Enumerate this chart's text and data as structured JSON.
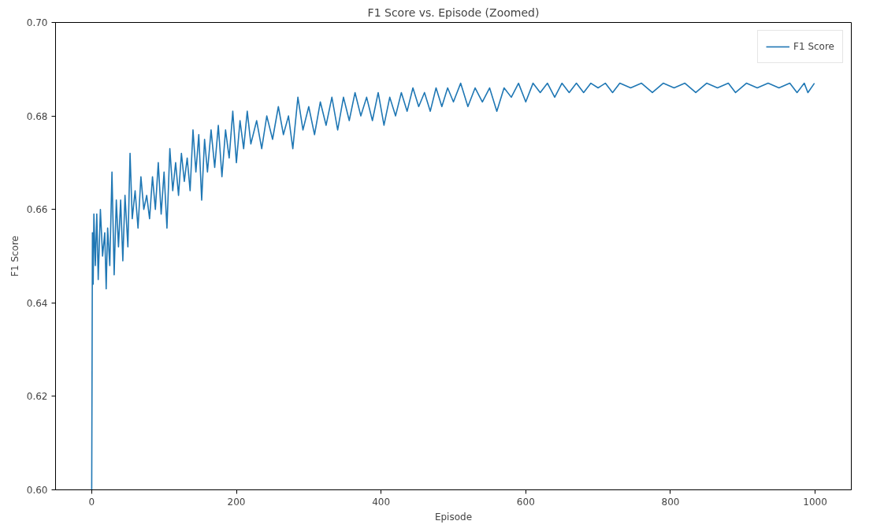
{
  "chart_data": {
    "type": "line",
    "title": "F1 Score vs. Episode (Zoomed)",
    "xlabel": "Episode",
    "ylabel": "F1 Score",
    "xlim": [
      -50,
      1050
    ],
    "ylim": [
      0.6,
      0.7
    ],
    "xticks": [
      0,
      200,
      400,
      600,
      800,
      1000
    ],
    "yticks": [
      {
        "value": 0.6,
        "label": "0.60"
      },
      {
        "value": 0.62,
        "label": "0.62"
      },
      {
        "value": 0.64,
        "label": "0.64"
      },
      {
        "value": 0.66,
        "label": "0.66"
      },
      {
        "value": 0.68,
        "label": "0.68"
      },
      {
        "value": 0.7,
        "label": "0.70"
      }
    ],
    "legend": "top right",
    "grid": false,
    "line_style": "solid",
    "series": [
      {
        "name": "F1 Score",
        "color": "#1f77b4",
        "x": [
          0,
          1,
          2,
          3,
          5,
          7,
          9,
          12,
          15,
          18,
          20,
          22,
          25,
          28,
          31,
          34,
          37,
          40,
          43,
          46,
          50,
          53,
          56,
          60,
          64,
          68,
          72,
          76,
          80,
          84,
          88,
          92,
          96,
          100,
          104,
          108,
          112,
          116,
          120,
          124,
          128,
          132,
          136,
          140,
          144,
          148,
          152,
          156,
          160,
          165,
          170,
          175,
          180,
          185,
          190,
          195,
          200,
          205,
          210,
          215,
          220,
          228,
          235,
          242,
          250,
          258,
          265,
          272,
          278,
          285,
          292,
          300,
          308,
          316,
          324,
          332,
          340,
          348,
          356,
          364,
          372,
          380,
          388,
          396,
          404,
          412,
          420,
          428,
          436,
          444,
          452,
          460,
          468,
          476,
          484,
          492,
          500,
          510,
          520,
          530,
          540,
          550,
          560,
          570,
          580,
          590,
          600,
          610,
          620,
          630,
          640,
          650,
          660,
          670,
          680,
          690,
          700,
          710,
          720,
          730,
          745,
          760,
          775,
          790,
          805,
          820,
          835,
          850,
          865,
          880,
          890,
          905,
          920,
          935,
          950,
          965,
          975,
          985,
          990,
          999
        ],
        "values": [
          0.6,
          0.655,
          0.644,
          0.659,
          0.648,
          0.659,
          0.645,
          0.66,
          0.65,
          0.655,
          0.643,
          0.656,
          0.648,
          0.668,
          0.646,
          0.662,
          0.652,
          0.662,
          0.649,
          0.663,
          0.652,
          0.672,
          0.658,
          0.664,
          0.656,
          0.667,
          0.66,
          0.663,
          0.658,
          0.667,
          0.66,
          0.67,
          0.659,
          0.668,
          0.656,
          0.673,
          0.664,
          0.67,
          0.663,
          0.672,
          0.666,
          0.671,
          0.664,
          0.677,
          0.668,
          0.676,
          0.662,
          0.675,
          0.668,
          0.677,
          0.669,
          0.678,
          0.667,
          0.677,
          0.671,
          0.681,
          0.67,
          0.679,
          0.673,
          0.681,
          0.674,
          0.679,
          0.673,
          0.68,
          0.675,
          0.682,
          0.676,
          0.68,
          0.673,
          0.684,
          0.677,
          0.682,
          0.676,
          0.683,
          0.678,
          0.684,
          0.677,
          0.684,
          0.679,
          0.685,
          0.68,
          0.684,
          0.679,
          0.685,
          0.678,
          0.684,
          0.68,
          0.685,
          0.681,
          0.686,
          0.682,
          0.685,
          0.681,
          0.686,
          0.682,
          0.686,
          0.683,
          0.687,
          0.682,
          0.686,
          0.683,
          0.686,
          0.681,
          0.686,
          0.684,
          0.687,
          0.683,
          0.687,
          0.685,
          0.687,
          0.684,
          0.687,
          0.685,
          0.687,
          0.685,
          0.687,
          0.686,
          0.687,
          0.685,
          0.687,
          0.686,
          0.687,
          0.685,
          0.687,
          0.686,
          0.687,
          0.685,
          0.687,
          0.686,
          0.687,
          0.685,
          0.687,
          0.686,
          0.687,
          0.686,
          0.687,
          0.685,
          0.687,
          0.685,
          0.687
        ]
      }
    ]
  }
}
